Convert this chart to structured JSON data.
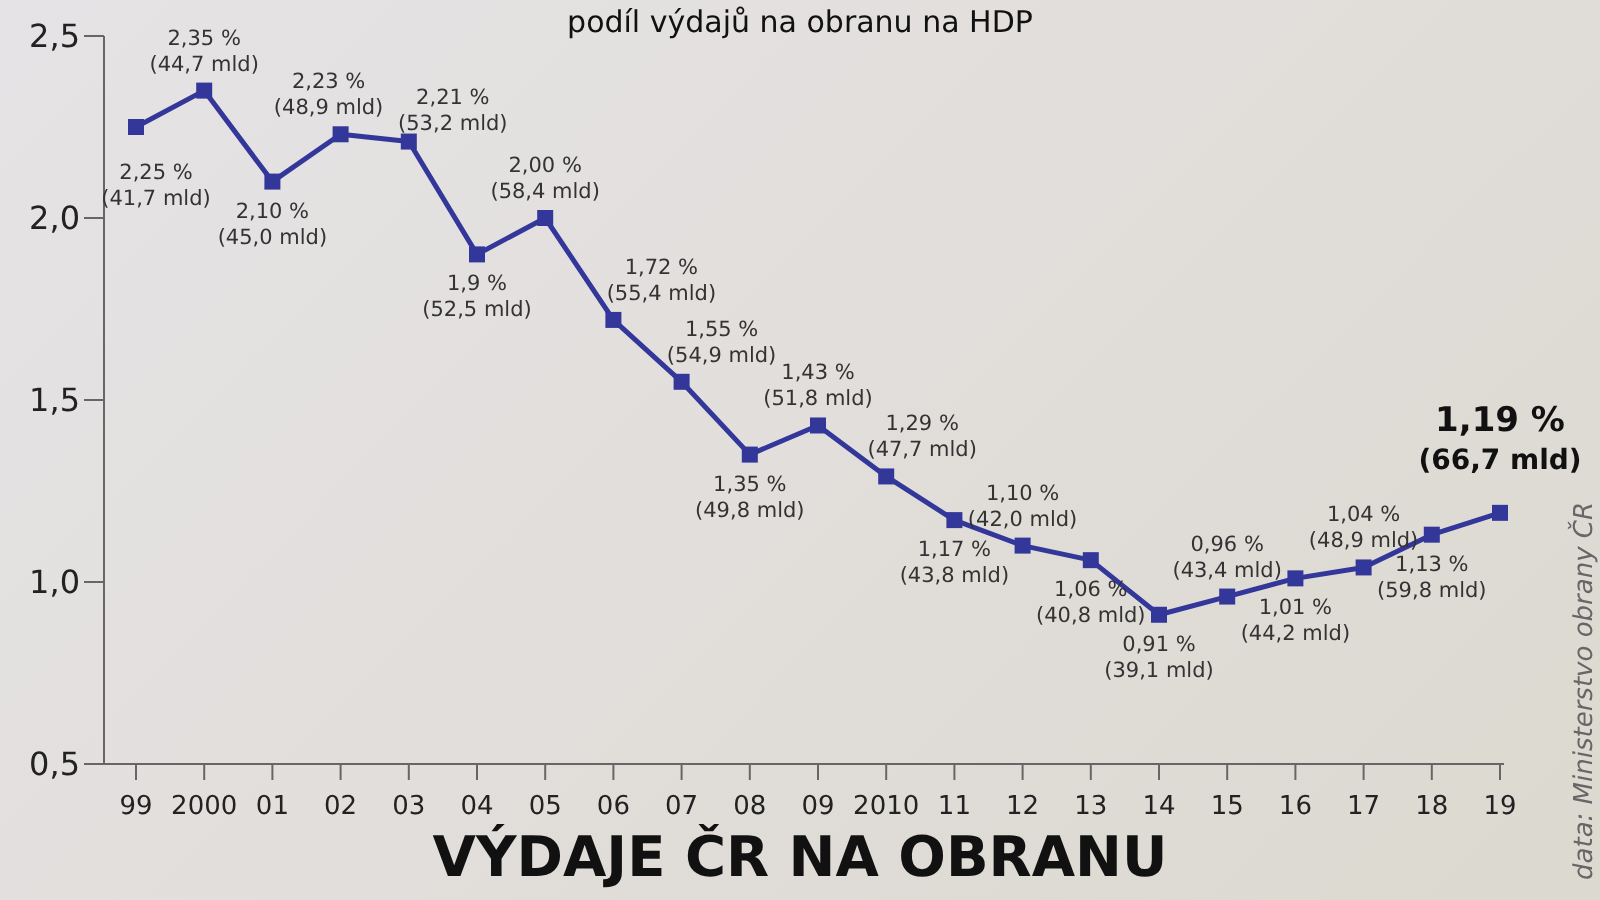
{
  "chart_data": {
    "type": "line",
    "title": "VÝDAJE ČR NA OBRANU",
    "subtitle": "podíl výdajů na obranu na HDP",
    "annotations": [
      "data: Ministerstvo obrany ČR"
    ],
    "categories": [
      "99",
      "2000",
      "01",
      "02",
      "03",
      "04",
      "05",
      "06",
      "07",
      "08",
      "09",
      "2010",
      "11",
      "12",
      "13",
      "14",
      "15",
      "16",
      "17",
      "18",
      "19"
    ],
    "series": [
      {
        "color": "#33379a",
        "values": [
          2.25,
          2.35,
          2.1,
          2.23,
          2.21,
          1.9,
          2.0,
          1.72,
          1.55,
          1.35,
          1.43,
          1.29,
          1.17,
          1.1,
          1.06,
          0.91,
          0.96,
          1.01,
          1.04,
          1.13,
          1.19
        ],
        "value_labels": [
          "2,25 % (41,7 mld)",
          "2,35 % (44,7 mld)",
          "2,10 % (45,0 mld)",
          "2,23 % (48,9 mld)",
          "2,21 % (53,2 mld)",
          "1,9 % (52,5 mld)",
          "2,00 % (58,4 mld)",
          "1,72 % (55,4 mld)",
          "1,55 % (54,9 mld)",
          "1,35 % (49,8 mld)",
          "1,43 % (51,8 mld)",
          "1,29 % (47,7 mld)",
          "1,17 % (43,8 mld)",
          "1,10 % (42,0 mld)",
          "1,06 % (40,8 mld)",
          "0,91 % (39,1 mld)",
          "0,96 % (43,4 mld)",
          "1,01 % (44,2 mld)",
          "1,04 % (48,9 mld)",
          "1,13 % (59,8 mld)",
          "1,19 % (66,7 mld)"
        ]
      }
    ],
    "ylim": [
      0.5,
      2.5
    ],
    "yticks": [
      {
        "value": 0.5,
        "label": "0,5"
      },
      {
        "value": 1.0,
        "label": "1,0"
      },
      {
        "value": 1.5,
        "label": "1,5"
      },
      {
        "value": 2.0,
        "label": "2,0"
      },
      {
        "value": 2.5,
        "label": "2,5"
      }
    ],
    "marker": "square",
    "line_style": "solid",
    "grid": false,
    "legend": false
  }
}
